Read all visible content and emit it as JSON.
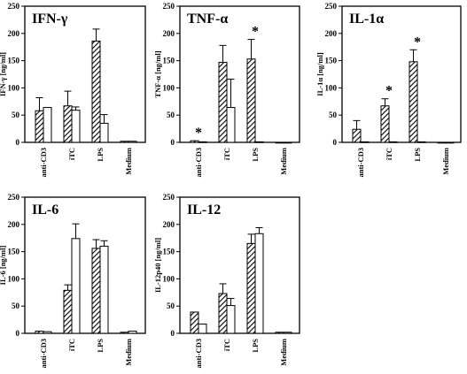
{
  "chart_data": [
    {
      "type": "bar",
      "title": "IFN-γ",
      "ylabel": "IFN-γ [ng/ml]",
      "categories": [
        "anti-CD3",
        "iTC",
        "LPS",
        "Medium"
      ],
      "ylim": [
        0,
        250
      ],
      "yticks": [
        0,
        50,
        100,
        150,
        200,
        250
      ],
      "series": [
        {
          "pattern": "hatched",
          "values": [
            58,
            67,
            186,
            2
          ],
          "errors": [
            24,
            27,
            22,
            0
          ]
        },
        {
          "pattern": "open",
          "values": [
            64,
            59,
            35,
            2
          ],
          "errors": [
            0,
            6,
            16,
            0
          ]
        }
      ],
      "significance": [
        "",
        "",
        "",
        ""
      ]
    },
    {
      "type": "bar",
      "title": "TNF-α",
      "ylabel": "TNF-α [ng/ml]",
      "categories": [
        "anti-CD3",
        "iTC",
        "LPS",
        "Medium"
      ],
      "ylim": [
        0,
        250
      ],
      "yticks": [
        0,
        50,
        100,
        150,
        200,
        250
      ],
      "series": [
        {
          "pattern": "hatched",
          "values": [
            3,
            147,
            153,
            0
          ],
          "errors": [
            0,
            31,
            36,
            0
          ]
        },
        {
          "pattern": "open",
          "values": [
            1,
            64,
            1,
            0
          ],
          "errors": [
            0,
            52,
            0,
            0
          ]
        }
      ],
      "significance": [
        "*",
        "",
        "*",
        ""
      ]
    },
    {
      "type": "bar",
      "title": "IL-1α",
      "ylabel": "IL-1α [ng/ml]",
      "categories": [
        "anti-CD3",
        "iTC",
        "LPS",
        "Medium"
      ],
      "ylim": [
        0,
        250
      ],
      "yticks": [
        0,
        50,
        100,
        150,
        200,
        250
      ],
      "series": [
        {
          "pattern": "hatched",
          "values": [
            24,
            67,
            148,
            0
          ],
          "errors": [
            16,
            13,
            22,
            0
          ]
        },
        {
          "pattern": "open",
          "values": [
            1,
            1,
            1,
            0
          ],
          "errors": [
            0,
            0,
            0,
            0
          ]
        }
      ],
      "significance": [
        "",
        "*",
        "*",
        ""
      ]
    },
    {
      "type": "bar",
      "title": "IL-6",
      "ylabel": "IL-6 [ng/ml]",
      "categories": [
        "anti-CD3",
        "iTC",
        "LPS",
        "Medium"
      ],
      "ylim": [
        0,
        250
      ],
      "yticks": [
        0,
        50,
        100,
        150,
        200,
        250
      ],
      "series": [
        {
          "pattern": "hatched",
          "values": [
            4,
            79,
            156,
            2
          ],
          "errors": [
            0,
            10,
            16,
            0
          ]
        },
        {
          "pattern": "open",
          "values": [
            3,
            174,
            160,
            4
          ],
          "errors": [
            0,
            27,
            10,
            0
          ]
        }
      ],
      "significance": [
        "",
        "",
        "",
        ""
      ]
    },
    {
      "type": "bar",
      "title": "IL-12",
      "ylabel": "IL-12p40 [ng/ml]",
      "categories": [
        "anti-CD3",
        "iTC",
        "LPS",
        "Medium"
      ],
      "ylim": [
        0,
        250
      ],
      "yticks": [
        0,
        50,
        100,
        150,
        200,
        250
      ],
      "series": [
        {
          "pattern": "hatched",
          "values": [
            39,
            73,
            165,
            2
          ],
          "errors": [
            0,
            18,
            17,
            0
          ]
        },
        {
          "pattern": "open",
          "values": [
            17,
            51,
            183,
            2
          ],
          "errors": [
            0,
            13,
            11,
            0
          ]
        }
      ],
      "significance": [
        "",
        "",
        "",
        ""
      ]
    }
  ]
}
